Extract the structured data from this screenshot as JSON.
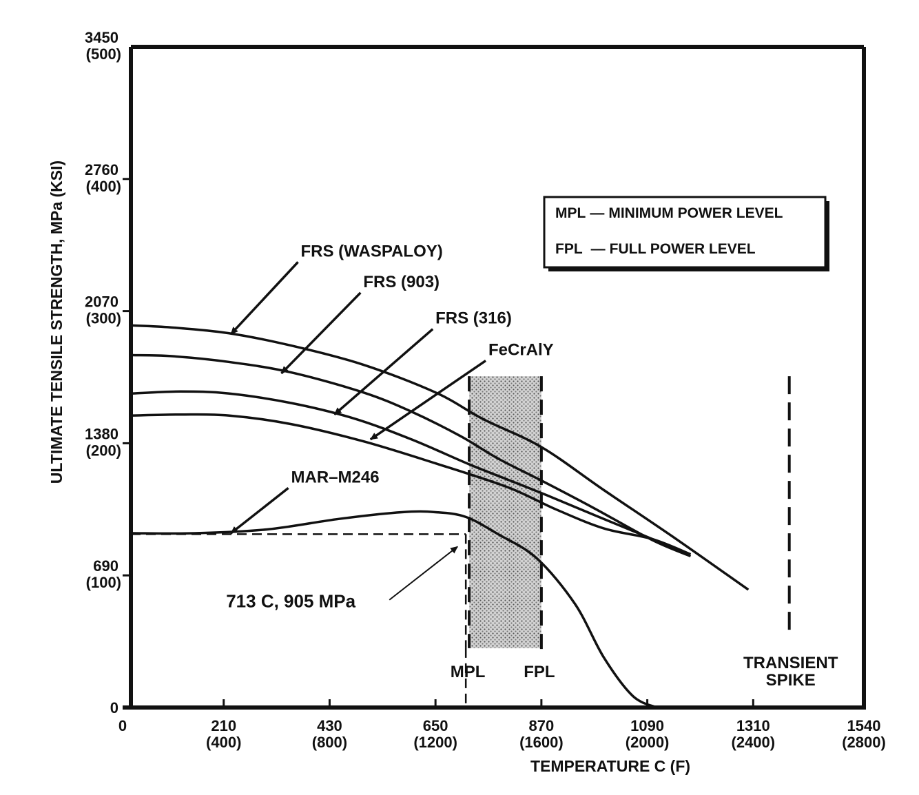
{
  "chart_data": {
    "type": "line",
    "xlabel": "TEMPERATURE C (F)",
    "ylabel": "ULTIMATE TENSILE STRENGTH, MPa (KSI)",
    "xlim": [
      0,
      1540
    ],
    "ylim": [
      0,
      3450
    ],
    "x_ticks": [
      {
        "value": 0,
        "label": "0",
        "sub": ""
      },
      {
        "value": 210,
        "label": "210",
        "sub": "(400)"
      },
      {
        "value": 430,
        "label": "430",
        "sub": "(800)"
      },
      {
        "value": 650,
        "label": "650",
        "sub": "(1200)"
      },
      {
        "value": 870,
        "label": "870",
        "sub": "(1600)"
      },
      {
        "value": 1090,
        "label": "1090",
        "sub": "(2000)"
      },
      {
        "value": 1310,
        "label": "1310",
        "sub": "(2400)"
      },
      {
        "value": 1540,
        "label": "1540",
        "sub": "(2800)"
      }
    ],
    "y_ticks": [
      {
        "value": 0,
        "label": "0",
        "sub": ""
      },
      {
        "value": 690,
        "label": "690",
        "sub": "(100)"
      },
      {
        "value": 1380,
        "label": "1380",
        "sub": "(200)"
      },
      {
        "value": 2070,
        "label": "2070",
        "sub": "(300)"
      },
      {
        "value": 2760,
        "label": "2760",
        "sub": "(400)"
      },
      {
        "value": 3450,
        "label": "3450",
        "sub": "(500)"
      }
    ],
    "series": [
      {
        "name": "FRS (WASPALOY)",
        "label_pos": [
          370,
          2355
        ],
        "arrow_to": [
          225,
          1950
        ],
        "points": [
          [
            20,
            1995
          ],
          [
            100,
            1985
          ],
          [
            220,
            1955
          ],
          [
            350,
            1890
          ],
          [
            500,
            1790
          ],
          [
            650,
            1645
          ],
          [
            750,
            1505
          ],
          [
            870,
            1360
          ],
          [
            1000,
            1135
          ],
          [
            1150,
            880
          ],
          [
            1300,
            615
          ]
        ]
      },
      {
        "name": "FRS (903)",
        "label_pos": [
          500,
          2195
        ],
        "arrow_to": [
          330,
          1745
        ],
        "points": [
          [
            20,
            1840
          ],
          [
            100,
            1835
          ],
          [
            220,
            1805
          ],
          [
            350,
            1750
          ],
          [
            500,
            1645
          ],
          [
            600,
            1545
          ],
          [
            700,
            1420
          ],
          [
            780,
            1300
          ],
          [
            870,
            1185
          ],
          [
            980,
            1040
          ],
          [
            1100,
            875
          ],
          [
            1180,
            790
          ]
        ]
      },
      {
        "name": "FRS (316)",
        "label_pos": [
          650,
          2005
        ],
        "arrow_to": [
          440,
          1530
        ],
        "points": [
          [
            20,
            1640
          ],
          [
            120,
            1650
          ],
          [
            220,
            1640
          ],
          [
            350,
            1590
          ],
          [
            480,
            1510
          ],
          [
            600,
            1400
          ],
          [
            720,
            1270
          ],
          [
            800,
            1190
          ],
          [
            880,
            1110
          ],
          [
            980,
            1005
          ],
          [
            1100,
            880
          ],
          [
            1170,
            800
          ]
        ]
      },
      {
        "name": "FeCrAlY",
        "label_pos": [
          760,
          1840
        ],
        "arrow_to": [
          515,
          1400
        ],
        "points": [
          [
            20,
            1525
          ],
          [
            120,
            1530
          ],
          [
            220,
            1525
          ],
          [
            350,
            1480
          ],
          [
            500,
            1390
          ],
          [
            650,
            1275
          ],
          [
            800,
            1150
          ],
          [
            900,
            1035
          ],
          [
            1000,
            935
          ],
          [
            1100,
            880
          ],
          [
            1180,
            800
          ]
        ]
      },
      {
        "name": "MAR–M246",
        "label_pos": [
          350,
          1175
        ],
        "arrow_to": [
          225,
          910
        ],
        "points": [
          [
            20,
            910
          ],
          [
            150,
            910
          ],
          [
            300,
            930
          ],
          [
            450,
            985
          ],
          [
            580,
            1020
          ],
          [
            650,
            1020
          ],
          [
            713,
            995
          ],
          [
            780,
            905
          ],
          [
            860,
            780
          ],
          [
            940,
            540
          ],
          [
            1000,
            260
          ],
          [
            1060,
            60
          ],
          [
            1110,
            0
          ]
        ]
      }
    ],
    "band": {
      "x_start": 720,
      "x_end": 870,
      "y_top": 1730,
      "y_bottom": 310,
      "labels": [
        "MPL",
        "FPL"
      ]
    },
    "reference_point": {
      "x": 713,
      "y": 905,
      "label": "713 C, 905 MPa",
      "label_pos": [
        215,
        555
      ]
    },
    "transient_spike": {
      "x": 1385,
      "label_lines": [
        "TRANSIENT",
        "SPIKE"
      ]
    },
    "legend": {
      "placement": "top-right",
      "entries": [
        {
          "abbr": "MPL",
          "text": "MINIMUM POWER LEVEL"
        },
        {
          "abbr": "FPL",
          "text": "FULL POWER LEVEL"
        }
      ],
      "separator": "—"
    }
  }
}
